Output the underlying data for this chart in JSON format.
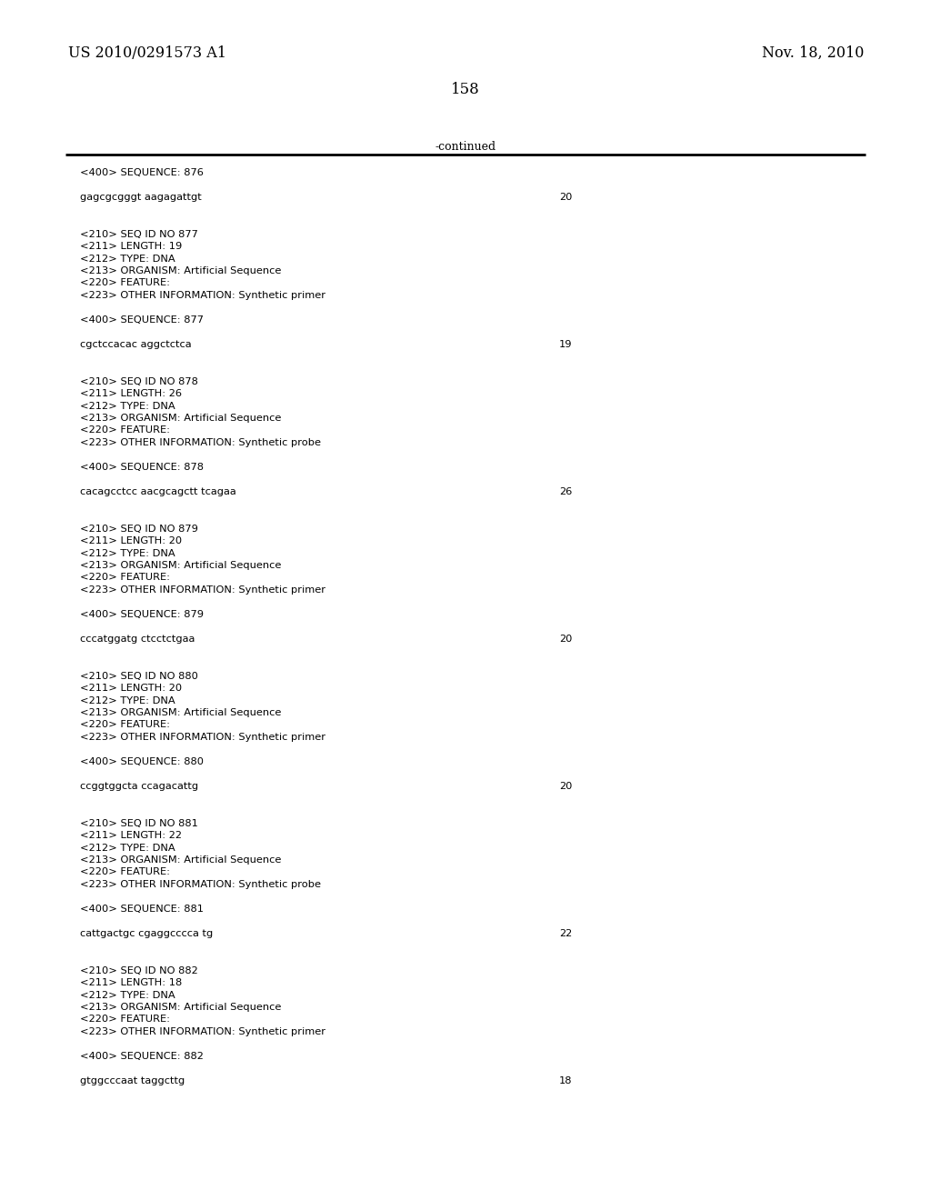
{
  "header_left": "US 2010/0291573 A1",
  "header_right": "Nov. 18, 2010",
  "page_number": "158",
  "continued_label": "-continued",
  "background_color": "#ffffff",
  "text_color": "#000000",
  "line_color": "#000000",
  "header_fontsize": 11.5,
  "mono_fontsize": 8.2,
  "page_num_fontsize": 12,
  "content": [
    {
      "type": "seq_label",
      "text": "<400> SEQUENCE: 876"
    },
    {
      "type": "blank_small"
    },
    {
      "type": "sequence",
      "seq": "gagcgcgggt aagagattgt",
      "num": "20"
    },
    {
      "type": "blank_large"
    },
    {
      "type": "blank_large"
    },
    {
      "type": "entry",
      "lines": [
        "<210> SEQ ID NO 877",
        "<211> LENGTH: 19",
        "<212> TYPE: DNA",
        "<213> ORGANISM: Artificial Sequence",
        "<220> FEATURE:",
        "<223> OTHER INFORMATION: Synthetic primer"
      ]
    },
    {
      "type": "blank_small"
    },
    {
      "type": "seq_label",
      "text": "<400> SEQUENCE: 877"
    },
    {
      "type": "blank_small"
    },
    {
      "type": "sequence",
      "seq": "cgctccacac aggctctca",
      "num": "19"
    },
    {
      "type": "blank_large"
    },
    {
      "type": "blank_large"
    },
    {
      "type": "entry",
      "lines": [
        "<210> SEQ ID NO 878",
        "<211> LENGTH: 26",
        "<212> TYPE: DNA",
        "<213> ORGANISM: Artificial Sequence",
        "<220> FEATURE:",
        "<223> OTHER INFORMATION: Synthetic probe"
      ]
    },
    {
      "type": "blank_small"
    },
    {
      "type": "seq_label",
      "text": "<400> SEQUENCE: 878"
    },
    {
      "type": "blank_small"
    },
    {
      "type": "sequence",
      "seq": "cacagcctcc aacgcagctt tcagaa",
      "num": "26"
    },
    {
      "type": "blank_large"
    },
    {
      "type": "blank_large"
    },
    {
      "type": "entry",
      "lines": [
        "<210> SEQ ID NO 879",
        "<211> LENGTH: 20",
        "<212> TYPE: DNA",
        "<213> ORGANISM: Artificial Sequence",
        "<220> FEATURE:",
        "<223> OTHER INFORMATION: Synthetic primer"
      ]
    },
    {
      "type": "blank_small"
    },
    {
      "type": "seq_label",
      "text": "<400> SEQUENCE: 879"
    },
    {
      "type": "blank_small"
    },
    {
      "type": "sequence",
      "seq": "cccatggatg ctcctctgaa",
      "num": "20"
    },
    {
      "type": "blank_large"
    },
    {
      "type": "blank_large"
    },
    {
      "type": "entry",
      "lines": [
        "<210> SEQ ID NO 880",
        "<211> LENGTH: 20",
        "<212> TYPE: DNA",
        "<213> ORGANISM: Artificial Sequence",
        "<220> FEATURE:",
        "<223> OTHER INFORMATION: Synthetic primer"
      ]
    },
    {
      "type": "blank_small"
    },
    {
      "type": "seq_label",
      "text": "<400> SEQUENCE: 880"
    },
    {
      "type": "blank_small"
    },
    {
      "type": "sequence",
      "seq": "ccggtggcta ccagacattg",
      "num": "20"
    },
    {
      "type": "blank_large"
    },
    {
      "type": "blank_large"
    },
    {
      "type": "entry",
      "lines": [
        "<210> SEQ ID NO 881",
        "<211> LENGTH: 22",
        "<212> TYPE: DNA",
        "<213> ORGANISM: Artificial Sequence",
        "<220> FEATURE:",
        "<223> OTHER INFORMATION: Synthetic probe"
      ]
    },
    {
      "type": "blank_small"
    },
    {
      "type": "seq_label",
      "text": "<400> SEQUENCE: 881"
    },
    {
      "type": "blank_small"
    },
    {
      "type": "sequence",
      "seq": "cattgactgc cgaggcccca tg",
      "num": "22"
    },
    {
      "type": "blank_large"
    },
    {
      "type": "blank_large"
    },
    {
      "type": "entry",
      "lines": [
        "<210> SEQ ID NO 882",
        "<211> LENGTH: 18",
        "<212> TYPE: DNA",
        "<213> ORGANISM: Artificial Sequence",
        "<220> FEATURE:",
        "<223> OTHER INFORMATION: Synthetic primer"
      ]
    },
    {
      "type": "blank_small"
    },
    {
      "type": "seq_label",
      "text": "<400> SEQUENCE: 882"
    },
    {
      "type": "blank_small"
    },
    {
      "type": "sequence",
      "seq": "gtggcccaat taggcttg",
      "num": "18"
    }
  ]
}
